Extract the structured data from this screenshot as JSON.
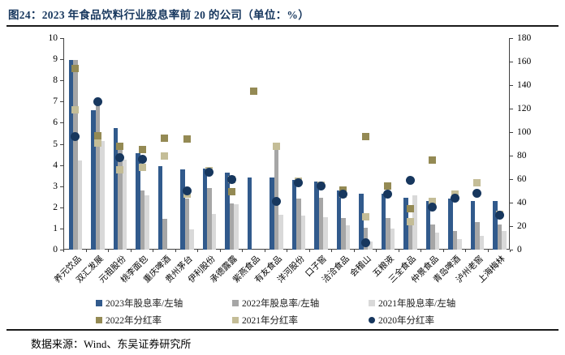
{
  "page": {
    "title": "图24：2023 年食品饮料行业股息率前 20 的公司（单位：%）",
    "source": "数据来源：Wind、东吴证券研究所"
  },
  "chart_data": {
    "type": "combo bar+scatter, bars on left axis (股息率 %), square/circle markers on right axis (分红率 %)",
    "title": "2023 年食品饮料行业股息率前 20 的公司",
    "categories": [
      "养元饮品",
      "双汇发展",
      "元祖股份",
      "桃李面包",
      "重庆啤酒",
      "贵州茅台",
      "伊利股份",
      "承德露露",
      "紫燕食品",
      "有友食品",
      "洋河股份",
      "口子窖",
      "洽洽食品",
      "会稽山",
      "五粮液",
      "三全食品",
      "仲景食品",
      "青岛啤酒",
      "泸州老窖",
      "上海梅林"
    ],
    "left_axis": {
      "min": 0,
      "max": 10,
      "step": 1
    },
    "right_axis": {
      "min": 0,
      "max": 180,
      "step": 20
    },
    "grid": "off",
    "legend_position": "bottom",
    "legend": [
      {
        "label": "2023年股息率/左轴",
        "shape": "square",
        "color": "#315a8c"
      },
      {
        "label": "2022年股息率/左轴",
        "shape": "square",
        "color": "#a6a6a6"
      },
      {
        "label": "2021年股息率/左轴",
        "shape": "square",
        "color": "#d9d9d9"
      },
      {
        "label": "2022年分红率",
        "shape": "square",
        "color": "#948a54"
      },
      {
        "label": "2021年分红率",
        "shape": "square",
        "color": "#c4bd97"
      },
      {
        "label": "2020年分红率",
        "shape": "circle",
        "color": "#17375e"
      }
    ],
    "series": [
      {
        "name": "2023年股息率/左轴",
        "type": "bar",
        "axis": "left",
        "color": "#315a8c",
        "values": [
          8.95,
          6.6,
          5.75,
          4.55,
          3.95,
          3.8,
          3.85,
          3.65,
          3.4,
          3.4,
          3.3,
          3.2,
          2.8,
          2.65,
          2.65,
          2.45,
          2.3,
          2.4,
          2.3,
          2.3
        ]
      },
      {
        "name": "2022年股息率/左轴",
        "type": "bar",
        "axis": "left",
        "color": "#a6a6a6",
        "values": [
          8.95,
          6.9,
          5.0,
          2.8,
          1.45,
          2.4,
          2.9,
          2.2,
          null,
          4.7,
          2.4,
          2.45,
          1.5,
          1.05,
          1.5,
          1.2,
          1.2,
          0.9,
          1.3,
          1.2
        ]
      },
      {
        "name": "2021年股息率/左轴",
        "type": "bar",
        "axis": "left",
        "color": "#d9d9d9",
        "values": [
          4.2,
          5.15,
          4.25,
          2.55,
          null,
          0.95,
          1.7,
          2.15,
          null,
          1.65,
          1.6,
          1.55,
          1.15,
          0.4,
          1.0,
          2.55,
          0.8,
          0.5,
          0.65,
          0.9
        ]
      },
      {
        "name": "2021年分红率",
        "type": "square",
        "axis": "right",
        "color": "#c4bd97",
        "values": [
          119,
          91,
          68,
          70,
          80,
          47,
          67,
          60,
          null,
          88,
          58,
          55,
          47,
          28,
          null,
          24,
          41,
          47,
          57,
          30
        ]
      },
      {
        "name": "2022年分红率",
        "type": "square",
        "axis": "right",
        "color": "#948a54",
        "values": [
          154,
          97,
          88,
          85,
          95,
          94,
          null,
          49,
          135,
          null,
          null,
          null,
          51,
          96,
          54,
          35,
          76,
          null,
          null,
          null
        ]
      },
      {
        "name": "2020年分红率",
        "type": "circle",
        "axis": "right",
        "color": "#17375e",
        "values": [
          96,
          126,
          78,
          77,
          null,
          50,
          66,
          60,
          null,
          41,
          57,
          54,
          47,
          6,
          47,
          59,
          36,
          44,
          48,
          29
        ]
      }
    ]
  }
}
